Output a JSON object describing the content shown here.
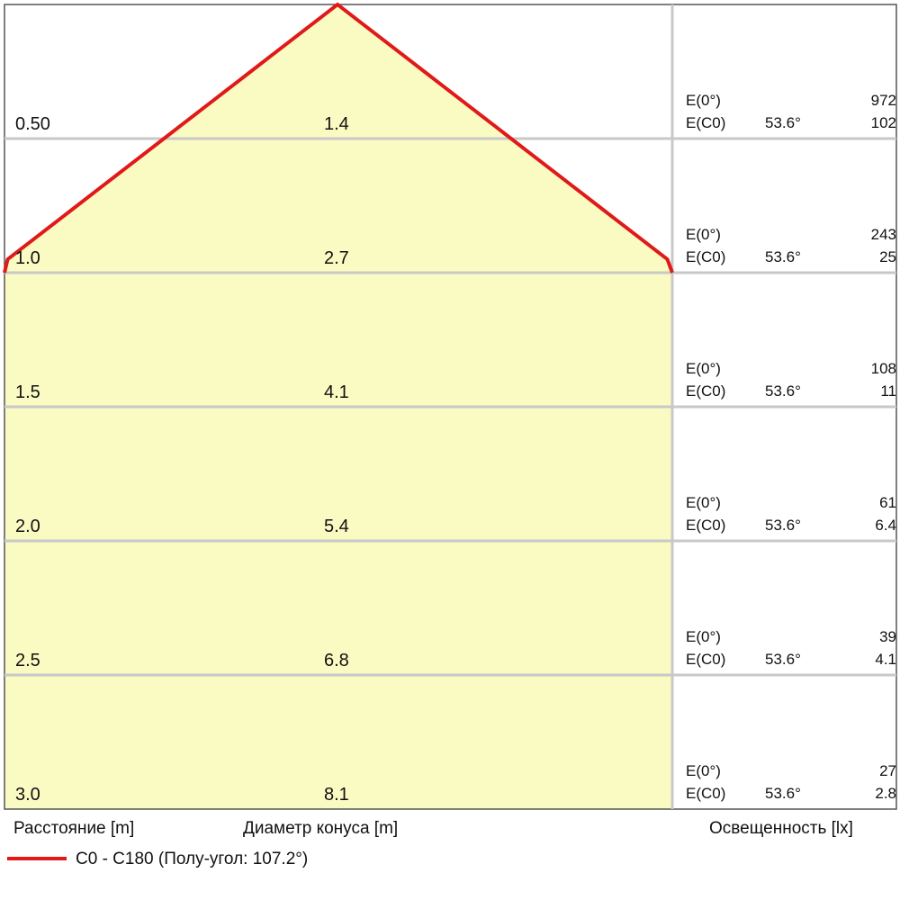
{
  "chart_data": {
    "type": "beam-cone",
    "half_angle_deg": 107.2,
    "rows": [
      {
        "distance": "0.50",
        "diameter": "1.4",
        "e0_label": "E(0°)",
        "e0": "972",
        "ec0_label": "E(C0)",
        "ec0_angle": "53.6°",
        "ec0": "102"
      },
      {
        "distance": "1.0",
        "diameter": "2.7",
        "e0_label": "E(0°)",
        "e0": "243",
        "ec0_label": "E(C0)",
        "ec0_angle": "53.6°",
        "ec0": "25"
      },
      {
        "distance": "1.5",
        "diameter": "4.1",
        "e0_label": "E(0°)",
        "e0": "108",
        "ec0_label": "E(C0)",
        "ec0_angle": "53.6°",
        "ec0": "11"
      },
      {
        "distance": "2.0",
        "diameter": "5.4",
        "e0_label": "E(0°)",
        "e0": "61",
        "ec0_label": "E(C0)",
        "ec0_angle": "53.6°",
        "ec0": "6.4"
      },
      {
        "distance": "2.5",
        "diameter": "6.8",
        "e0_label": "E(0°)",
        "e0": "39",
        "ec0_label": "E(C0)",
        "ec0_angle": "53.6°",
        "ec0": "4.1"
      },
      {
        "distance": "3.0",
        "diameter": "8.1",
        "e0_label": "E(0°)",
        "e0": "27",
        "ec0_label": "E(C0)",
        "ec0_angle": "53.6°",
        "ec0": "2.8"
      }
    ],
    "footer": {
      "distance_label": "Расстояние [m]",
      "diameter_label": "Диаметр конуса [m]",
      "illuminance_label": "Освещенность [lx]"
    },
    "legend": {
      "label": "C0 - C180 (Полу-угол: 107.2°)",
      "color": "#e01919"
    },
    "colors": {
      "cone_fill": "#fafac3",
      "grid": "#c8c8c8",
      "line": "#e01919"
    }
  }
}
